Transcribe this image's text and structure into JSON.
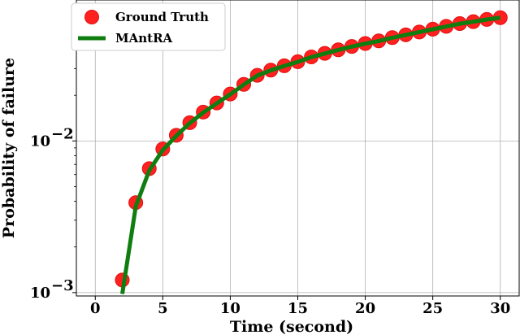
{
  "chart_data": {
    "type": "line",
    "xlabel": "Time (second)",
    "ylabel": "Probability of failure",
    "xlim": [
      -1.4,
      31.4
    ],
    "ylim": [
      0.00095,
      0.085
    ],
    "yscale": "log",
    "grid": true,
    "legend_position": "top-left",
    "x_ticks": [
      0,
      5,
      10,
      15,
      20,
      25,
      30
    ],
    "x_tick_labels": [
      "0",
      "5",
      "10",
      "15",
      "20",
      "25",
      "30"
    ],
    "y_ticks": [
      0.001,
      0.01
    ],
    "y_tick_labels": [
      {
        "base": "10",
        "exp": "−3"
      },
      {
        "base": "10",
        "exp": "−2"
      }
    ],
    "series": [
      {
        "name": "Ground Truth",
        "style": "markers",
        "color": "#ff2020",
        "edge_color": "#e01010",
        "x": [
          2,
          3,
          4,
          5,
          6,
          7,
          8,
          9,
          10,
          11,
          12,
          13,
          14,
          15,
          16,
          17,
          18,
          19,
          20,
          21,
          22,
          23,
          24,
          25,
          26,
          27,
          28,
          29,
          30
        ],
        "y": [
          0.00121,
          0.00392,
          0.00657,
          0.00885,
          0.0109,
          0.0132,
          0.0155,
          0.0178,
          0.0204,
          0.0236,
          0.0271,
          0.0293,
          0.0313,
          0.0333,
          0.0358,
          0.0378,
          0.0399,
          0.042,
          0.0439,
          0.0457,
          0.048,
          0.0501,
          0.0523,
          0.0546,
          0.057,
          0.0594,
          0.0612,
          0.0633,
          0.065
        ]
      },
      {
        "name": "MAntRA",
        "style": "line",
        "color": "#0f7d0f",
        "x": [
          2,
          3,
          4,
          5,
          6,
          7,
          8,
          9,
          10,
          11,
          12,
          13,
          14,
          15,
          16,
          17,
          18,
          19,
          20,
          21,
          22,
          23,
          24,
          25,
          26,
          27,
          28,
          29,
          30
        ],
        "y": [
          0.00098,
          0.0037,
          0.0064,
          0.0087,
          0.0108,
          0.0131,
          0.0154,
          0.0177,
          0.0203,
          0.0235,
          0.027,
          0.0292,
          0.0312,
          0.0332,
          0.0357,
          0.0377,
          0.0398,
          0.0419,
          0.0438,
          0.0456,
          0.0479,
          0.05,
          0.0522,
          0.0545,
          0.0569,
          0.0593,
          0.0611,
          0.0632,
          0.065
        ]
      }
    ]
  }
}
